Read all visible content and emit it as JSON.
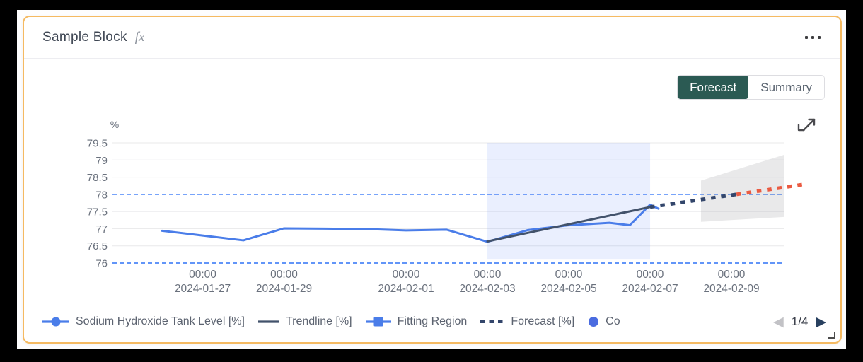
{
  "card": {
    "title": "Sample Block",
    "fx_label": "fx",
    "view_tabs": [
      {
        "label": "Forecast",
        "active": true
      },
      {
        "label": "Summary",
        "active": false
      }
    ],
    "pagination": {
      "page_label": "1/4",
      "prev_enabled": false,
      "next_enabled": true
    }
  },
  "chart_data": {
    "type": "line",
    "unit_label": "%",
    "time_origin": "2024-01-25 00:00",
    "t_unit": "hours since time_origin",
    "y_axis": {
      "ticks": [
        79.5,
        79,
        78.5,
        78,
        77.5,
        77,
        76.5,
        76
      ],
      "range": [
        75.8,
        79.8
      ]
    },
    "x_axis": {
      "tick_labels": [
        {
          "t": 48,
          "time": "00:00",
          "date": "2024-01-27"
        },
        {
          "t": 96,
          "time": "00:00",
          "date": "2024-01-29"
        },
        {
          "t": 168,
          "time": "00:00",
          "date": "2024-02-01"
        },
        {
          "t": 216,
          "time": "00:00",
          "date": "2024-02-03"
        },
        {
          "t": 264,
          "time": "00:00",
          "date": "2024-02-05"
        },
        {
          "t": 312,
          "time": "00:00",
          "date": "2024-02-07"
        },
        {
          "t": 360,
          "time": "00:00",
          "date": "2024-02-09"
        }
      ]
    },
    "thresholds": {
      "upper": 78,
      "lower": 76,
      "color": "#4c86f8"
    },
    "fitting_region": {
      "start": "2024-02-03 00:00",
      "end": "2024-02-07 00:00",
      "t": [
        216,
        312
      ],
      "color": "rgba(92,130,244,0.13)"
    },
    "confidence_band": {
      "polygon_t_v": [
        [
          342,
          78.4
        ],
        [
          391,
          79.15
        ],
        [
          391,
          77.34
        ],
        [
          342,
          77.2
        ]
      ],
      "color": "rgba(145,145,150,0.2)"
    },
    "series": [
      {
        "name": "Sodium Hydroxide Tank Level [%]",
        "style": "solid",
        "color": "#4a7de9",
        "points": [
          [
            24,
            76.94
          ],
          [
            48,
            76.8
          ],
          [
            72,
            76.66
          ],
          [
            96,
            77.01
          ],
          [
            120,
            77.0
          ],
          [
            144,
            76.99
          ],
          [
            168,
            76.95
          ],
          [
            192,
            76.97
          ],
          [
            216,
            76.62
          ],
          [
            240,
            76.96
          ],
          [
            264,
            77.1
          ],
          [
            288,
            77.17
          ],
          [
            300,
            77.1
          ],
          [
            312,
            77.7
          ],
          [
            317,
            77.58
          ]
        ]
      },
      {
        "name": "Trendline [%]",
        "style": "solid",
        "color": "#42526b",
        "points": [
          [
            216,
            76.63
          ],
          [
            312,
            77.63
          ]
        ]
      },
      {
        "name": "Forecast [%]",
        "style": "dashed",
        "segments": [
          {
            "color": "#33466b",
            "points": [
              [
                312,
                77.63
              ],
              [
                363,
                78.0
              ]
            ]
          },
          {
            "color": "#ea5b42",
            "points": [
              [
                363,
                78.0
              ],
              [
                404,
                78.3
              ]
            ]
          }
        ]
      }
    ],
    "legend": [
      {
        "label": "Sodium Hydroxide Tank Level [%]",
        "swatch": "line-circle",
        "color": "#4a7de9"
      },
      {
        "label": "Trendline [%]",
        "swatch": "line",
        "color": "#42526b"
      },
      {
        "label": "Fitting Region",
        "swatch": "line-square",
        "color": "#4a7de9"
      },
      {
        "label": "Forecast [%]",
        "swatch": "dashes",
        "color": "#33466b"
      },
      {
        "label": "Co",
        "swatch": "dot",
        "color": "#4a6ce0"
      }
    ]
  }
}
